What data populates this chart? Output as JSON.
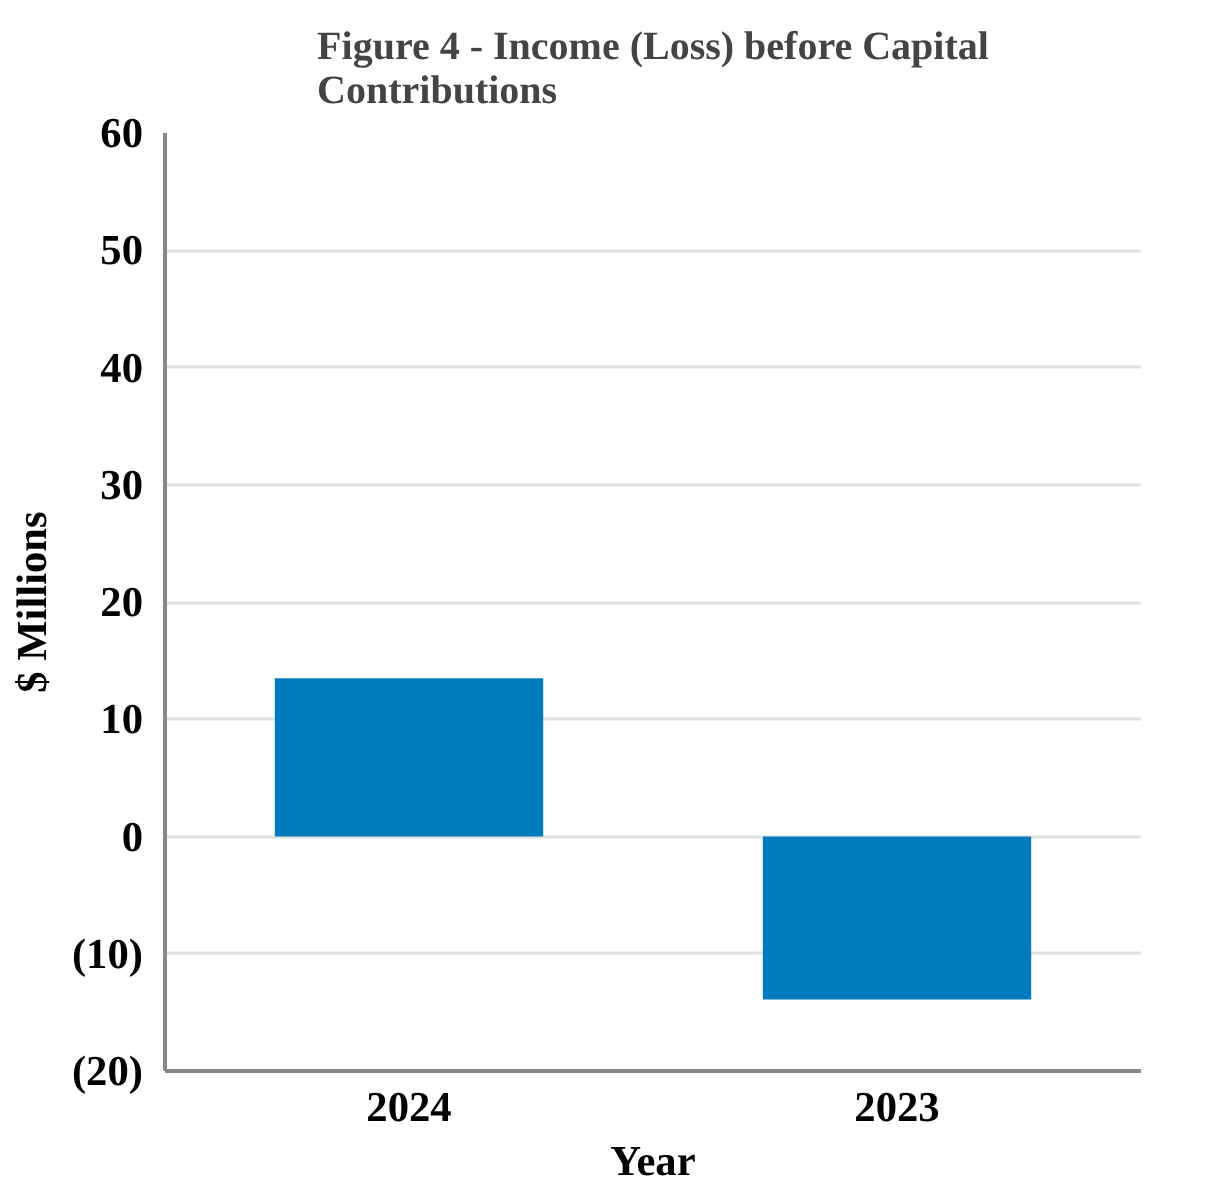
{
  "chart_data": {
    "type": "bar",
    "title": "Figure 4 - Income (Loss) before Capital Contributions",
    "xlabel": "Year",
    "ylabel": "$ Millions",
    "categories": [
      "2024",
      "2023"
    ],
    "values": [
      13.5,
      -13.9
    ],
    "color": "#007bbb",
    "ylim": [
      -20,
      60
    ],
    "yticks": [
      60,
      50,
      40,
      30,
      20,
      10,
      0,
      {
        "value": -10,
        "label": "(10)"
      },
      {
        "value": -20,
        "label": "(20)"
      }
    ],
    "grid": "y"
  }
}
